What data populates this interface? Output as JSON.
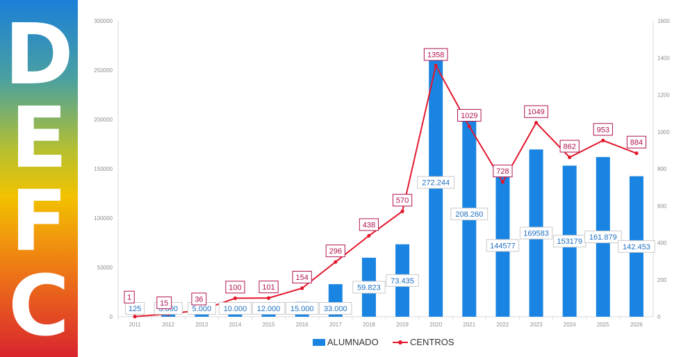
{
  "logo": {
    "letters": [
      "D",
      "E",
      "F",
      "C"
    ],
    "gradient": [
      "#1b7fd8",
      "#4aa0a0",
      "#b5c030",
      "#f2c200",
      "#ef7a15",
      "#d9242f"
    ]
  },
  "chart_data": {
    "type": "bar+line",
    "categories": [
      "2011",
      "2012",
      "2013",
      "2014",
      "2015",
      "2016",
      "2017",
      "2018",
      "2019",
      "2020",
      "2021",
      "2022",
      "2023",
      "2024",
      "2025",
      "2026"
    ],
    "series": [
      {
        "name": "ALUMNADO",
        "type": "bar",
        "axis": "left",
        "color": "#1a84e2",
        "values": [
          125,
          3000,
          5000,
          10000,
          12000,
          15000,
          33000,
          59823,
          73435,
          272244,
          208260,
          144577,
          169583,
          153179,
          161879,
          142453
        ],
        "labels": [
          "125",
          "3.000",
          "5.000",
          "10.000",
          "12.000",
          "15.000",
          "33.000",
          "59.823",
          "73.435",
          "272.244",
          "208.260",
          "144577",
          "169583",
          "153179",
          "161.879",
          "142.453"
        ]
      },
      {
        "name": "CENTROS",
        "type": "line",
        "axis": "right",
        "color": "#e3172c",
        "values": [
          1,
          15,
          36,
          100,
          101,
          154,
          296,
          438,
          570,
          1358,
          1029,
          728,
          1049,
          862,
          953,
          884
        ],
        "labels": [
          "1",
          "15",
          "36",
          "100",
          "101",
          "154",
          "296",
          "438",
          "570",
          "1358",
          "1029",
          "728",
          "1049",
          "862",
          "953",
          "884"
        ]
      }
    ],
    "y_left": {
      "min": 0,
      "max": 300000,
      "ticks": [
        "0",
        "50000",
        "100000",
        "150000",
        "200000",
        "250000",
        "300000"
      ]
    },
    "y_right": {
      "min": 0,
      "max": 1600,
      "ticks": [
        "0",
        "200",
        "400",
        "600",
        "800",
        "1000",
        "1200",
        "1400",
        "1600"
      ]
    },
    "legend_position": "bottom",
    "grid": false
  }
}
